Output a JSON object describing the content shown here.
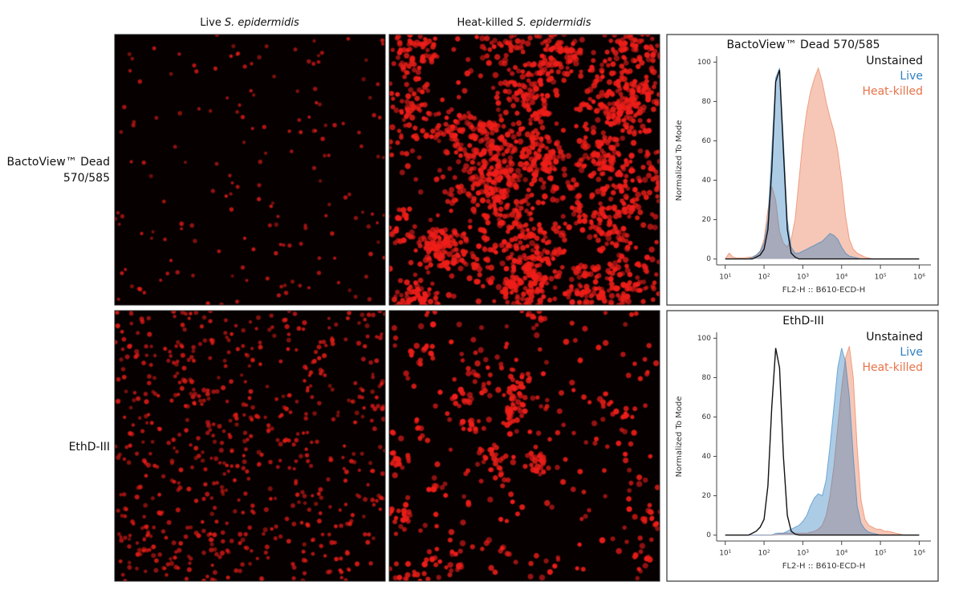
{
  "columns": [
    {
      "prefix": "Live",
      "species": "S. epidermidis"
    },
    {
      "prefix": "Heat-killed",
      "species": "S. epidermidis"
    }
  ],
  "rows": [
    {
      "label": [
        "BactoView™ Dead",
        "570/585"
      ]
    },
    {
      "label": [
        "EthD-III"
      ]
    }
  ],
  "chart_data": [
    {
      "type": "area",
      "title": "BactoView™ Dead 570/585",
      "xlabel": "FL2-H :: B610-ECD-H",
      "ylabel": "Normalized To Mode",
      "xscale": "log",
      "xlim": [
        6,
        2000000
      ],
      "ylim": [
        -3,
        103
      ],
      "legend": "upper right",
      "xticks": [
        {
          "value": 10,
          "label": "10¹"
        },
        {
          "value": 100,
          "label": "10²"
        },
        {
          "value": 1000,
          "label": "10³"
        },
        {
          "value": 10000,
          "label": "10⁴"
        },
        {
          "value": 100000,
          "label": "10⁵"
        },
        {
          "value": 1000000,
          "label": "10⁶"
        }
      ],
      "yticks": [
        0,
        20,
        40,
        60,
        80,
        100
      ],
      "x": [
        10,
        12.6,
        15.8,
        20,
        25.1,
        31.6,
        39.8,
        50.1,
        63.1,
        79.4,
        100,
        126,
        158,
        200,
        251,
        316,
        398,
        501,
        631,
        794,
        1000,
        1260,
        1580,
        2000,
        2510,
        3160,
        3980,
        5010,
        6310,
        7940,
        10000,
        12600,
        15800,
        20000,
        25100,
        31600,
        39800,
        50100,
        63100,
        79400,
        100000,
        126000,
        158000,
        200000,
        251000,
        316000,
        398000,
        501000,
        631000,
        794000,
        1000000
      ],
      "series": [
        {
          "name": "Unstained",
          "color": "#111111",
          "filled": false,
          "values": [
            0,
            0,
            0,
            0,
            0,
            0,
            0,
            0,
            1,
            2,
            5,
            15,
            45,
            90,
            96,
            55,
            15,
            3,
            1,
            0,
            0,
            0,
            0,
            0,
            0,
            0,
            0,
            0,
            0,
            0,
            0,
            0,
            0,
            0,
            0,
            0,
            0,
            0,
            0,
            0,
            0,
            0,
            0,
            0,
            0,
            0,
            0,
            0,
            0,
            0,
            0
          ]
        },
        {
          "name": "Live",
          "color": "#2f7fc1",
          "filled": true,
          "values": [
            0,
            0,
            0,
            0,
            0,
            0,
            0,
            1,
            2,
            4,
            8,
            20,
            55,
            92,
            97,
            60,
            20,
            6,
            3,
            3,
            4,
            5,
            6,
            7,
            8,
            9,
            11,
            13,
            12,
            10,
            6,
            3,
            1.5,
            1,
            0.5,
            0,
            0,
            0,
            0,
            0,
            0,
            0,
            0,
            0,
            0,
            0,
            0,
            0,
            0,
            0,
            0
          ]
        },
        {
          "name": "Heat-killed",
          "color": "#e8734a",
          "filled": true,
          "values": [
            0,
            3,
            1,
            0.5,
            0.5,
            0.5,
            1,
            1,
            2,
            4,
            10,
            25,
            37,
            30,
            14,
            8,
            6,
            10,
            20,
            40,
            60,
            75,
            85,
            92,
            97,
            90,
            80,
            72,
            65,
            55,
            40,
            22,
            10,
            5,
            3,
            2,
            1,
            0.5,
            0,
            0,
            0,
            0,
            0,
            0,
            0,
            0,
            0,
            0,
            0,
            0,
            0
          ]
        }
      ]
    },
    {
      "type": "area",
      "title": "EthD-III",
      "xlabel": "FL2-H :: B610-ECD-H",
      "ylabel": "Normalized To Mode",
      "xscale": "log",
      "xlim": [
        6,
        2000000
      ],
      "ylim": [
        -3,
        103
      ],
      "legend": "upper right",
      "xticks": [
        {
          "value": 10,
          "label": "10¹"
        },
        {
          "value": 100,
          "label": "10²"
        },
        {
          "value": 1000,
          "label": "10³"
        },
        {
          "value": 10000,
          "label": "10⁴"
        },
        {
          "value": 100000,
          "label": "10⁵"
        },
        {
          "value": 1000000,
          "label": "10⁶"
        }
      ],
      "yticks": [
        0,
        20,
        40,
        60,
        80,
        100
      ],
      "x": [
        10,
        12.6,
        15.8,
        20,
        25.1,
        31.6,
        39.8,
        50.1,
        63.1,
        79.4,
        100,
        126,
        158,
        200,
        251,
        316,
        398,
        501,
        631,
        794,
        1000,
        1260,
        1580,
        2000,
        2510,
        3160,
        3980,
        5010,
        6310,
        7940,
        10000,
        12600,
        15800,
        20000,
        25100,
        31600,
        39800,
        50100,
        63100,
        79400,
        100000,
        126000,
        158000,
        200000,
        251000,
        316000,
        398000,
        501000,
        631000,
        794000,
        1000000
      ],
      "series": [
        {
          "name": "Unstained",
          "color": "#111111",
          "filled": false,
          "values": [
            0,
            0,
            0,
            0,
            0,
            0,
            0,
            1,
            2,
            4,
            8,
            25,
            65,
            95,
            85,
            40,
            10,
            2,
            0.5,
            0,
            0,
            0,
            0,
            0,
            0,
            0,
            0,
            0,
            0,
            0,
            0,
            0,
            0,
            0,
            0,
            0,
            0,
            0,
            0,
            0,
            0,
            0,
            0,
            0,
            0,
            0,
            0,
            0,
            0,
            0,
            0
          ]
        },
        {
          "name": "Live",
          "color": "#2f7fc1",
          "filled": true,
          "values": [
            0,
            0,
            0,
            0,
            0,
            0,
            0,
            0,
            0,
            0,
            0,
            0,
            0,
            1,
            1,
            1,
            2,
            3,
            4,
            5,
            7,
            10,
            15,
            19,
            21,
            20,
            28,
            45,
            65,
            85,
            95,
            88,
            70,
            40,
            15,
            6,
            3,
            1.5,
            1,
            0.5,
            0,
            0,
            0,
            0,
            0,
            0,
            0,
            0,
            0,
            0,
            0
          ]
        },
        {
          "name": "Heat-killed",
          "color": "#e8734a",
          "filled": true,
          "values": [
            0,
            0,
            0,
            0,
            0,
            0,
            0,
            0,
            0,
            0,
            0,
            0,
            0,
            0,
            1,
            1,
            1,
            1,
            1,
            1,
            1,
            1,
            1.5,
            2,
            3,
            5,
            10,
            20,
            35,
            55,
            75,
            90,
            96,
            80,
            45,
            18,
            8,
            5,
            4,
            3,
            3,
            2,
            2,
            1.5,
            1,
            0.5,
            0,
            0,
            0,
            0,
            0
          ]
        }
      ]
    }
  ]
}
